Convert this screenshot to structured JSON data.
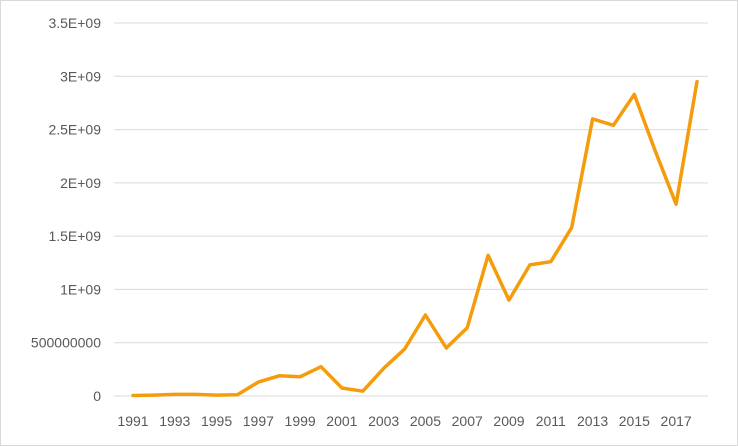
{
  "chart_data": {
    "type": "line",
    "title": "",
    "xlabel": "",
    "ylabel": "",
    "x": [
      1991,
      1992,
      1993,
      1994,
      1995,
      1996,
      1997,
      1998,
      1999,
      2000,
      2001,
      2002,
      2003,
      2004,
      2005,
      2006,
      2007,
      2008,
      2009,
      2010,
      2011,
      2012,
      2013,
      2014,
      2015,
      2016,
      2017,
      2018
    ],
    "x_tick_labels": [
      "1991",
      "1993",
      "1995",
      "1997",
      "1999",
      "2001",
      "2003",
      "2005",
      "2007",
      "2009",
      "2011",
      "2013",
      "2015",
      "2017"
    ],
    "y_tick_labels": [
      "0",
      "500000000",
      "1E+09",
      "1.5E+09",
      "2E+09",
      "2.5E+09",
      "3E+09",
      "3.5E+09"
    ],
    "ylim": [
      0,
      3500000000
    ],
    "grid": true,
    "legend": "none",
    "series": [
      {
        "color": "#F59C0D",
        "values": [
          5000000,
          8000000,
          15000000,
          15000000,
          8000000,
          12000000,
          130000000,
          190000000,
          180000000,
          275000000,
          75000000,
          45000000,
          260000000,
          440000000,
          760000000,
          450000000,
          640000000,
          1320000000,
          900000000,
          1230000000,
          1260000000,
          1580000000,
          2600000000,
          2540000000,
          2830000000,
          2300000000,
          1800000000,
          2950000000
        ]
      }
    ]
  }
}
